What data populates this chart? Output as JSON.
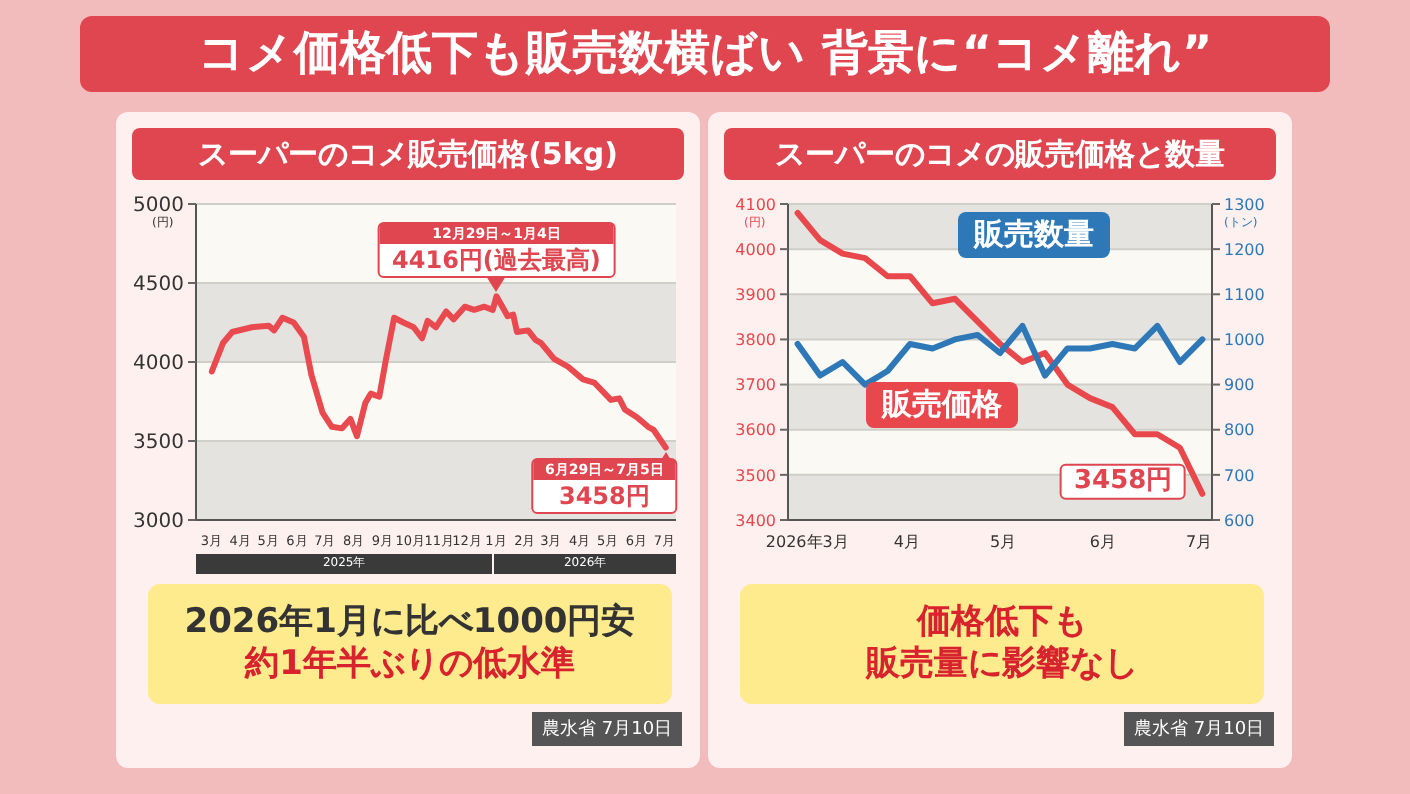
{
  "chart_data": [
    {
      "type": "line",
      "title": "スーパーのコメ販売価格(5kg)",
      "ylabel": "(円)",
      "color": "#e84a4f",
      "x": [
        "2025-03-01",
        "2025-03-13",
        "2025-03-23",
        "2025-04-13",
        "2025-05-01",
        "2025-05-07",
        "2025-05-16",
        "2025-05-28",
        "2025-06-08",
        "2025-06-16",
        "2025-06-28",
        "2025-07-08",
        "2025-07-19",
        "2025-07-28",
        "2025-08-04",
        "2025-08-13",
        "2025-08-19",
        "2025-08-28",
        "2025-09-04",
        "2025-09-13",
        "2025-09-23",
        "2025-10-04",
        "2025-10-13",
        "2025-10-19",
        "2025-10-28",
        "2025-11-08",
        "2025-11-16",
        "2025-11-28",
        "2025-12-08",
        "2025-12-19",
        "2025-12-28",
        "2026-01-01",
        "2026-01-13",
        "2026-01-19",
        "2026-01-23",
        "2026-02-04",
        "2026-02-12",
        "2026-02-18",
        "2026-03-04",
        "2026-03-19",
        "2026-04-04",
        "2026-04-16",
        "2026-05-04",
        "2026-05-13",
        "2026-05-19",
        "2026-06-01",
        "2026-06-13",
        "2026-06-19",
        "2026-07-02"
      ],
      "values": [
        3940,
        4120,
        4190,
        4220,
        4230,
        4200,
        4280,
        4250,
        4160,
        3920,
        3680,
        3590,
        3580,
        3640,
        3530,
        3740,
        3800,
        3780,
        4010,
        4280,
        4250,
        4220,
        4150,
        4260,
        4220,
        4320,
        4270,
        4350,
        4330,
        4350,
        4330,
        4416,
        4290,
        4300,
        4190,
        4200,
        4140,
        4120,
        4020,
        3970,
        3890,
        3870,
        3760,
        3770,
        3700,
        3650,
        3590,
        3570,
        3458
      ],
      "xlim": [
        "2025-02-12",
        "2026-07-13"
      ],
      "xticks": [
        {
          "value": "2025-03-01",
          "label": "3月"
        },
        {
          "value": "2025-04-01",
          "label": "4月"
        },
        {
          "value": "2025-05-01",
          "label": "5月"
        },
        {
          "value": "2025-06-01",
          "label": "6月"
        },
        {
          "value": "2025-07-01",
          "label": "7月"
        },
        {
          "value": "2025-08-01",
          "label": "8月"
        },
        {
          "value": "2025-09-01",
          "label": "9月"
        },
        {
          "value": "2025-10-01",
          "label": "10月"
        },
        {
          "value": "2025-11-01",
          "label": "11月"
        },
        {
          "value": "2025-12-01",
          "label": "12月"
        },
        {
          "value": "2026-01-01",
          "label": "1月"
        },
        {
          "value": "2026-02-01",
          "label": "2月"
        },
        {
          "value": "2026-03-01",
          "label": "3月"
        },
        {
          "value": "2026-04-01",
          "label": "4月"
        },
        {
          "value": "2026-05-01",
          "label": "5月"
        },
        {
          "value": "2026-06-01",
          "label": "6月"
        },
        {
          "value": "2026-07-01",
          "label": "7月"
        }
      ],
      "ylim": [
        3000,
        5000
      ],
      "yticks": [
        3000,
        3500,
        4000,
        4500,
        5000
      ],
      "grid": "y",
      "annotations": [
        "コメ価格低下も販売数横ばい 背景に“コメ離れ”",
        "12月29日～1月4日",
        "6月29日～7月5日",
        {
          "text": "4416円(過去最高)",
          "x": "2026-01-01",
          "y": 4416
        },
        {
          "text": "3458円",
          "x": "2026-07-02",
          "y": 3458
        },
        "2025年",
        "2026年",
        "2026年1月に比べ1000円安",
        "約1年半ぶりの低水準",
        "農水省 7月10日"
      ]
    },
    {
      "type": "line",
      "title": "スーパーのコメの販売価格と数量",
      "ylabel": "(円)",
      "y2label": "(トン)",
      "x": [
        "2026-02-26",
        "2026-03-05",
        "2026-03-12",
        "2026-03-19",
        "2026-03-26",
        "2026-04-02",
        "2026-04-09",
        "2026-04-16",
        "2026-04-23",
        "2026-04-30",
        "2026-05-07",
        "2026-05-14",
        "2026-05-21",
        "2026-05-28",
        "2026-06-04",
        "2026-06-11",
        "2026-06-18",
        "2026-06-25",
        "2026-07-02"
      ],
      "series": [
        {
          "name": "販売価格",
          "color": "#e8474c",
          "values": [
            4080,
            4020,
            3990,
            3980,
            3940,
            3940,
            3880,
            3890,
            3840,
            3790,
            3750,
            3770,
            3700,
            3670,
            3650,
            3590,
            3590,
            3560,
            3458
          ]
        },
        {
          "name": "販売数量",
          "color": "#2e78b7",
          "axis": "y2",
          "values": [
            990,
            920,
            950,
            900,
            930,
            990,
            980,
            1000,
            1010,
            970,
            1030,
            920,
            980,
            980,
            990,
            980,
            1030,
            950,
            1000
          ]
        }
      ],
      "xlim": [
        "2026-02-23",
        "2026-07-05"
      ],
      "xticks": [
        {
          "value": "2026-03-01",
          "label": "2026年3月"
        },
        {
          "value": "2026-04-01",
          "label": "4月"
        },
        {
          "value": "2026-05-01",
          "label": "5月"
        },
        {
          "value": "2026-06-01",
          "label": "6月"
        },
        {
          "value": "2026-07-01",
          "label": "7月"
        }
      ],
      "ylim": [
        3400,
        4100
      ],
      "yticks": [
        3400,
        3500,
        3600,
        3700,
        3800,
        3900,
        4000,
        4100
      ],
      "y2lim": [
        600,
        1300
      ],
      "y2ticks": [
        600,
        700,
        800,
        900,
        1000,
        1100,
        1200,
        1300
      ],
      "grid": "y",
      "annotations": [
        {
          "text": "3458円",
          "x": "2026-07-02",
          "y": 3458
        },
        "価格低下も",
        "販売量に影響なし",
        "農水省 7月10日"
      ]
    }
  ]
}
